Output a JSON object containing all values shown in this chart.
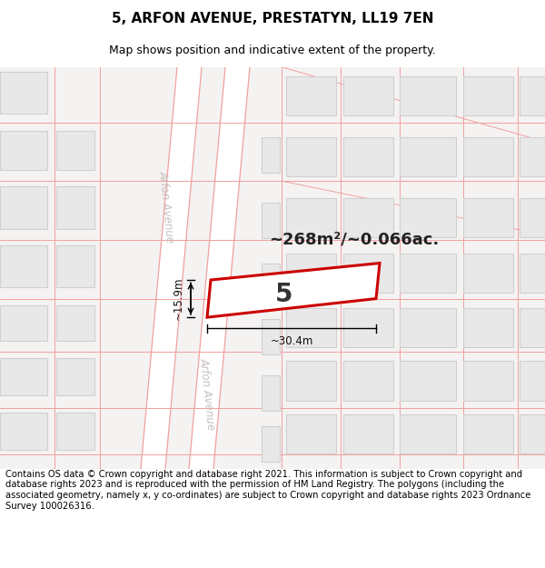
{
  "title": "5, ARFON AVENUE, PRESTATYN, LL19 7EN",
  "subtitle": "Map shows position and indicative extent of the property.",
  "area_text": "~268m²/~0.066ac.",
  "plot_number": "5",
  "width_label": "~30.4m",
  "height_label": "~15.9m",
  "street_label_1": "Arfon Avenue",
  "street_label_2": "Arfon Avenue",
  "footer_text": "Contains OS data © Crown copyright and database right 2021. This information is subject to Crown copyright and database rights 2023 and is reproduced with the permission of HM Land Registry. The polygons (including the associated geometry, namely x, y co-ordinates) are subject to Crown copyright and database rights 2023 Ordnance Survey 100026316.",
  "bg_color": "#ffffff",
  "map_bg": "#f5f2f2",
  "road_fill": "#ffffff",
  "road_line_color": "#f0a0a0",
  "building_fill": "#e8e8e8",
  "building_edge": "#d0d0d0",
  "plot_color": "#cc0000",
  "street_text_color": "#c8c0c0",
  "title_fontsize": 11,
  "subtitle_fontsize": 9,
  "footer_fontsize": 7.2
}
